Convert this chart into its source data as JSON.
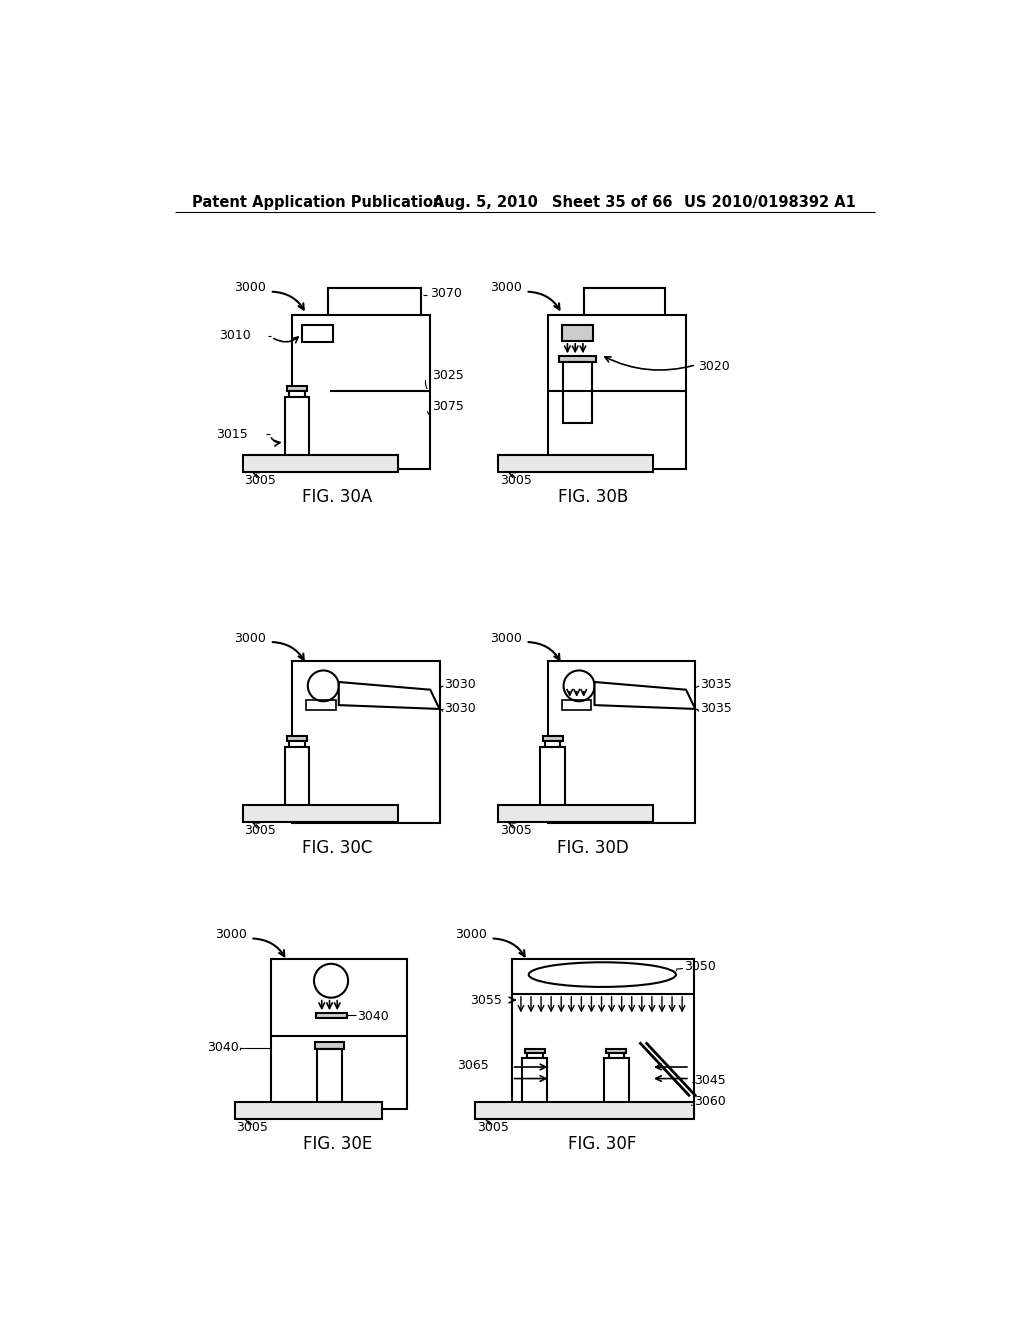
{
  "bg_color": "#ffffff",
  "header_text": "Patent Application Publication",
  "header_date": "Aug. 5, 2010",
  "header_sheet": "Sheet 35 of 66",
  "header_patent": "US 2010/0198392 A1"
}
